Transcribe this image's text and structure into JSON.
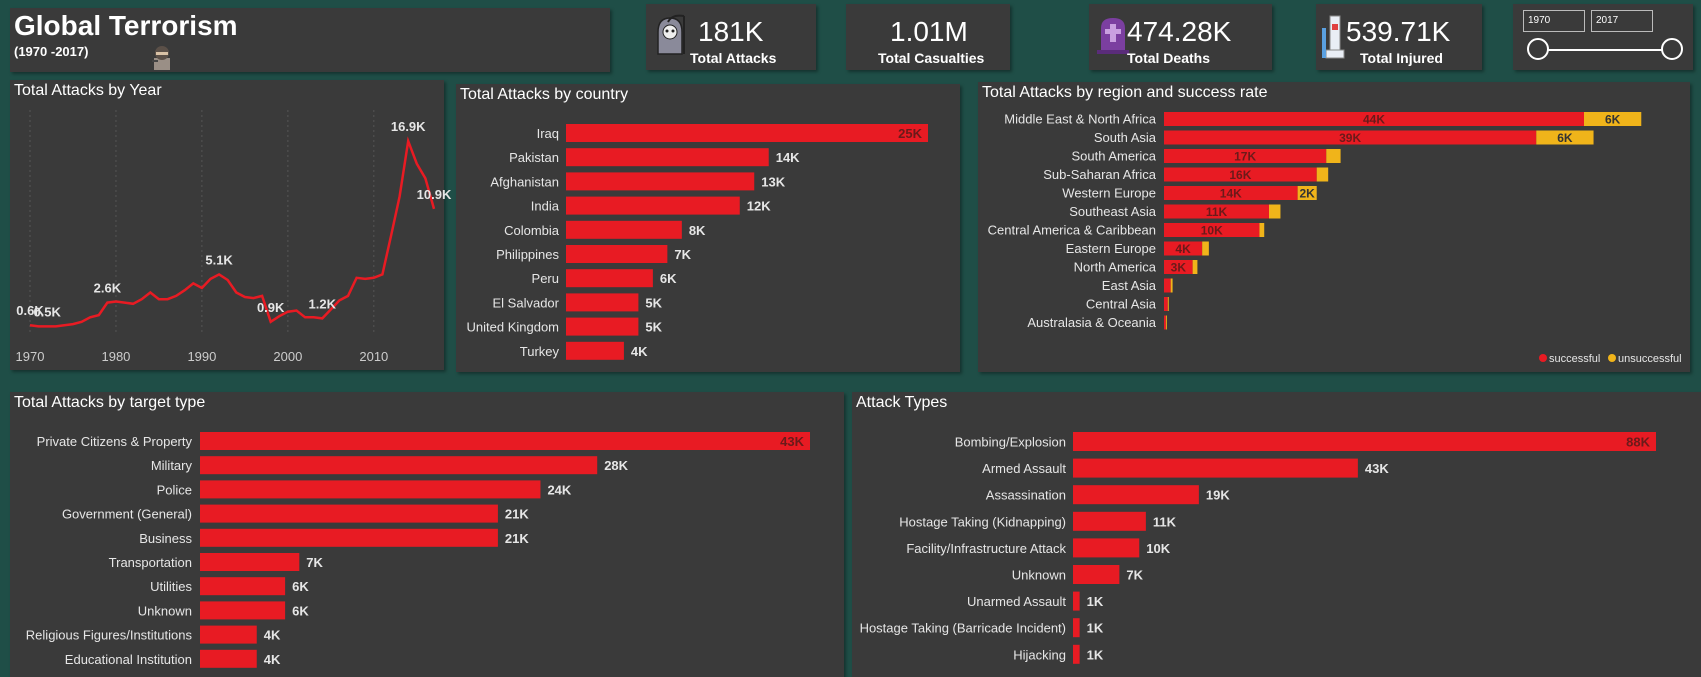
{
  "header": {
    "title": "Global Terrorism",
    "subtitle": "(1970 -2017)"
  },
  "kpis": [
    {
      "value": "181K",
      "label": "Total Attacks",
      "icon": "grim-reaper-icon"
    },
    {
      "value": "1.01M",
      "label": "Total Casualties"
    },
    {
      "value": "474.28K",
      "label": "Total Deaths",
      "icon": "tombstone-icon"
    },
    {
      "value": "539.71K",
      "label": "Total Injured",
      "icon": "injured-leg-icon"
    }
  ],
  "date_filter": {
    "start": "1970",
    "end": "2017"
  },
  "colors": {
    "successful": "#e81b23",
    "unsuccessful": "#f0b41a",
    "panel": "#3a3a3a",
    "background": "#1f4e47"
  },
  "chart_data": [
    {
      "type": "line",
      "title": "Total Attacks by Year",
      "x": [
        1970,
        1971,
        1972,
        1973,
        1974,
        1975,
        1976,
        1977,
        1978,
        1979,
        1980,
        1981,
        1982,
        1983,
        1984,
        1985,
        1986,
        1987,
        1988,
        1989,
        1990,
        1991,
        1992,
        1993,
        1994,
        1995,
        1996,
        1997,
        1998,
        1999,
        2000,
        2001,
        2002,
        2003,
        2004,
        2005,
        2006,
        2007,
        2008,
        2009,
        2010,
        2011,
        2012,
        2013,
        2014,
        2015,
        2016,
        2017
      ],
      "values": [
        0.6,
        0.5,
        0.5,
        0.5,
        0.6,
        0.7,
        0.9,
        1.3,
        1.5,
        2.6,
        2.7,
        2.6,
        2.5,
        2.9,
        3.5,
        2.9,
        2.9,
        3.2,
        3.7,
        4.3,
        3.9,
        4.7,
        5.1,
        4.6,
        3.5,
        3.1,
        3.0,
        3.2,
        0.9,
        1.4,
        1.8,
        1.9,
        1.3,
        1.3,
        1.2,
        2.0,
        2.8,
        3.2,
        4.8,
        4.7,
        4.8,
        5.1,
        8.5,
        12.0,
        16.9,
        14.9,
        13.6,
        10.9
      ],
      "data_labels": [
        {
          "x": 1970,
          "label": "0.6K"
        },
        {
          "x": 1972,
          "label": "0.5K"
        },
        {
          "x": 1979,
          "label": "2.6K"
        },
        {
          "x": 1992,
          "label": "5.1K"
        },
        {
          "x": 1998,
          "label": "0.9K"
        },
        {
          "x": 2004,
          "label": "1.2K"
        },
        {
          "x": 2014,
          "label": "16.9K"
        },
        {
          "x": 2017,
          "label": "10.9K"
        }
      ],
      "x_ticks": [
        "1970",
        "1980",
        "1990",
        "2000",
        "2010"
      ]
    },
    {
      "type": "bar",
      "title": "Total Attacks by country",
      "categories": [
        "Iraq",
        "Pakistan",
        "Afghanistan",
        "India",
        "Colombia",
        "Philippines",
        "Peru",
        "El Salvador",
        "United Kingdom",
        "Turkey"
      ],
      "values": [
        25,
        14,
        13,
        12,
        8,
        7,
        6,
        5,
        5,
        4
      ],
      "labels": [
        "25K",
        "14K",
        "13K",
        "12K",
        "8K",
        "7K",
        "6K",
        "5K",
        "5K",
        "4K"
      ]
    },
    {
      "type": "bar",
      "title": "Total Attacks by region and success rate",
      "categories": [
        "Middle East & North Africa",
        "South Asia",
        "South America",
        "Sub-Saharan Africa",
        "Western Europe",
        "Southeast Asia",
        "Central America & Caribbean",
        "Eastern Europe",
        "North America",
        "East Asia",
        "Central Asia",
        "Australasia & Oceania"
      ],
      "series": [
        {
          "name": "successful",
          "values": [
            44,
            39,
            17,
            16,
            14,
            11,
            10,
            4,
            3,
            0.7,
            0.4,
            0.2
          ],
          "labels": [
            "44K",
            "39K",
            "17K",
            "16K",
            "14K",
            "11K",
            "10K",
            "4K",
            "3K",
            "",
            "",
            ""
          ]
        },
        {
          "name": "unsuccessful",
          "values": [
            6,
            6,
            1.5,
            1.2,
            2,
            1.2,
            0.5,
            0.7,
            0.5,
            0.2,
            0.1,
            0.1
          ],
          "labels": [
            "6K",
            "6K",
            "",
            "",
            "2K",
            "",
            "",
            "",
            "",
            "",
            "",
            ""
          ]
        }
      ],
      "legend": "bottom-right"
    },
    {
      "type": "bar",
      "title": "Total Attacks by target type",
      "categories": [
        "Private Citizens & Property",
        "Military",
        "Police",
        "Government (General)",
        "Business",
        "Transportation",
        "Utilities",
        "Unknown",
        "Religious Figures/Institutions",
        "Educational Institution"
      ],
      "values": [
        43,
        28,
        24,
        21,
        21,
        7,
        6,
        6,
        4,
        4
      ],
      "labels": [
        "43K",
        "28K",
        "24K",
        "21K",
        "21K",
        "7K",
        "6K",
        "6K",
        "4K",
        "4K"
      ]
    },
    {
      "type": "bar",
      "title": "Attack Types",
      "categories": [
        "Bombing/Explosion",
        "Armed Assault",
        "Assassination",
        "Hostage Taking (Kidnapping)",
        "Facility/Infrastructure Attack",
        "Unknown",
        "Unarmed Assault",
        "Hostage Taking (Barricade Incident)",
        "Hijacking"
      ],
      "values": [
        88,
        43,
        19,
        11,
        10,
        7,
        1,
        1,
        1
      ],
      "labels": [
        "88K",
        "43K",
        "19K",
        "11K",
        "10K",
        "7K",
        "1K",
        "1K",
        "1K"
      ]
    }
  ]
}
